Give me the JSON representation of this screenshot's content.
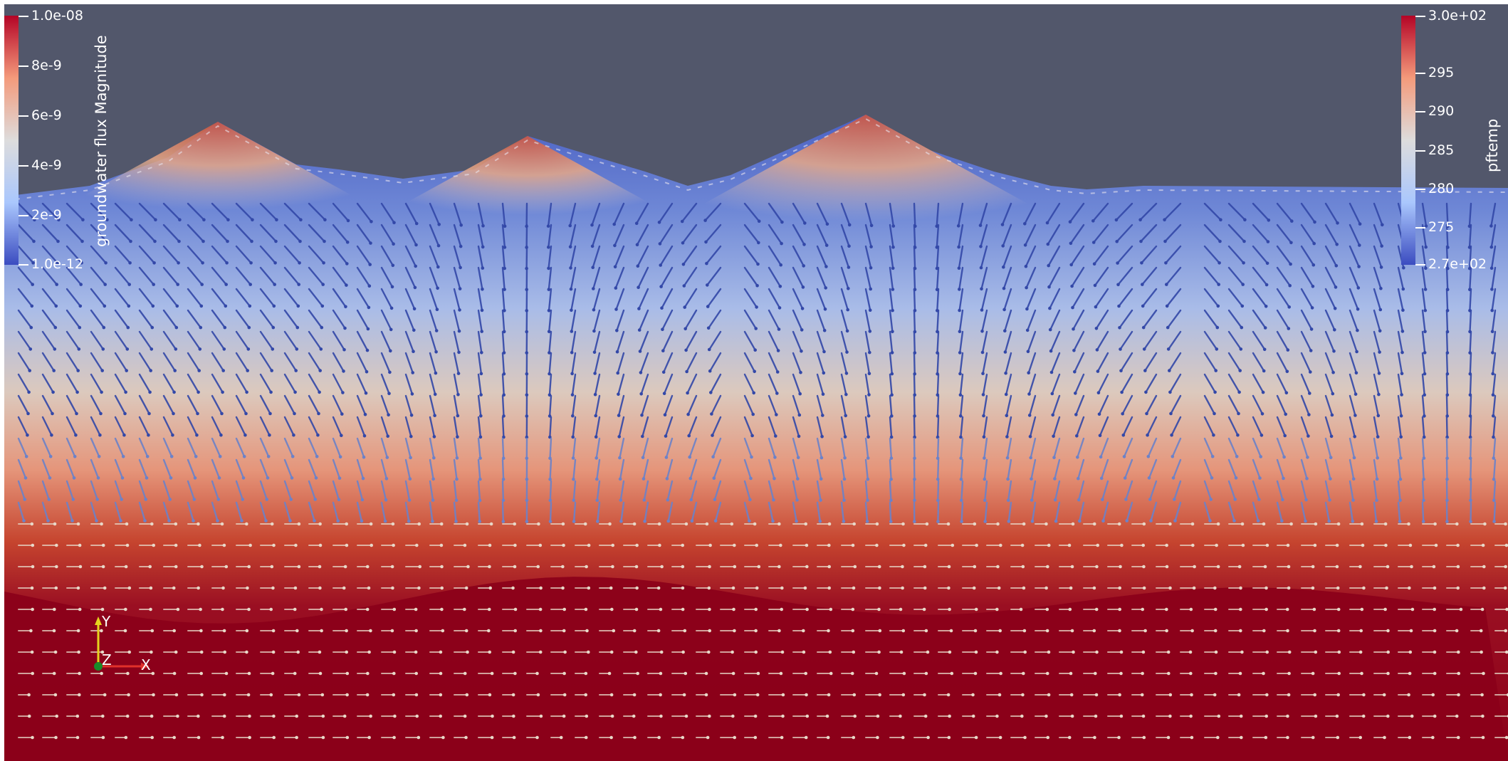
{
  "viewport": {
    "background": "#52576b"
  },
  "left_colorbar": {
    "title": "groundwater flux Magnitude",
    "tick_labels": [
      "1.0e-08",
      "8e-9",
      "6e-9",
      "4e-9",
      "2e-9",
      "1.0e-12"
    ],
    "colors": [
      "#b40426",
      "#f49a7b",
      "#dddcdc",
      "#aac7fd",
      "#3b4cc0"
    ]
  },
  "right_colorbar": {
    "title": "pftemp",
    "tick_labels": [
      "3.0e+02",
      "295",
      "290",
      "285",
      "280",
      "275",
      "2.7e+02"
    ],
    "colors": [
      "#b40426",
      "#f49a7b",
      "#dddcdc",
      "#aac7fd",
      "#3b4cc0"
    ]
  },
  "orientation_axes": {
    "x_label": "X",
    "y_label": "Y",
    "z_label": "Z",
    "x_color": "#e0302a",
    "y_color": "#e6d21f",
    "z_color": "#1a8a2a"
  },
  "field_colors": {
    "deep": "#8b0019",
    "warm": "#c6452f",
    "mid": "#d9b8a8",
    "cool": "#a9c0e8",
    "surface_blue": "#4863c7",
    "arrow_blue": "#3348a8",
    "arrow_pale": "#e8d8c8"
  }
}
